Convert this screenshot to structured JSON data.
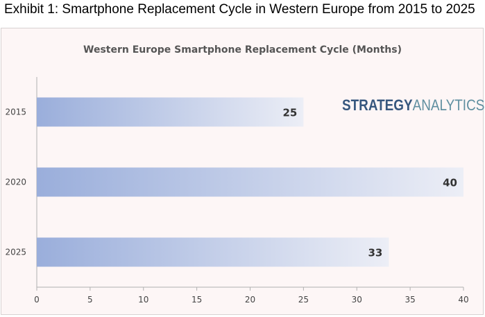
{
  "exhibit_title": "Exhibit 1: Smartphone Replacement Cycle in Western Europe from 2015 to 2025",
  "logo": {
    "part1": "STRATEGY",
    "part2": "ANALYTICS"
  },
  "colors": {
    "bar_start": "#9aaedb",
    "bar_end": "#eceef6",
    "background": "#fdf6f6"
  },
  "chart_data": {
    "type": "bar",
    "orientation": "horizontal",
    "title": "Western Europe Smartphone Replacement Cycle (Months)",
    "categories": [
      "2015",
      "2020",
      "2025"
    ],
    "values": [
      25,
      40,
      33
    ],
    "data_labels": [
      "25",
      "40",
      "33"
    ],
    "xlim": [
      0,
      40
    ],
    "xticks": [
      "0",
      "5",
      "10",
      "15",
      "20",
      "25",
      "30",
      "35",
      "40"
    ],
    "grid": false,
    "legend": "none"
  }
}
